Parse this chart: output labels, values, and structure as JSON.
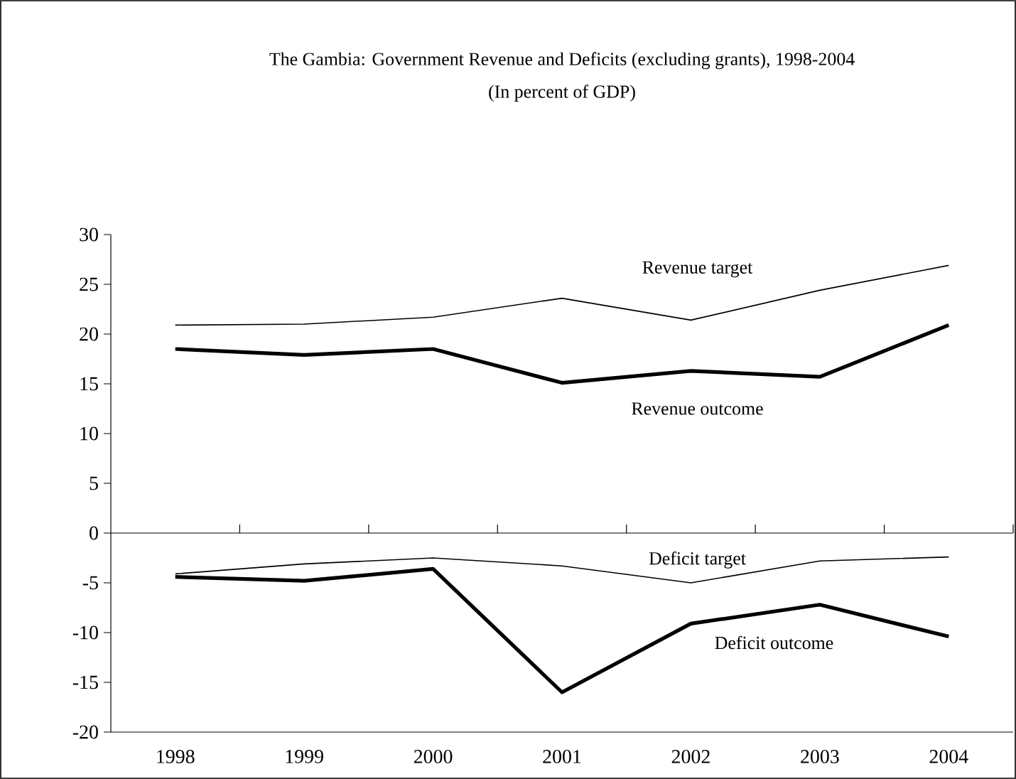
{
  "chart_data": {
    "type": "line",
    "title": "The Gambia: Government Revenue and Deficits (excluding grants), 1998-2004",
    "subtitle": "(In percent of GDP)",
    "categories": [
      "1998",
      "1999",
      "2000",
      "2001",
      "2002",
      "2003",
      "2004"
    ],
    "series": [
      {
        "color": "#000000",
        "values": [
          20.9,
          21.0,
          21.7,
          23.6,
          21.4,
          24.4,
          26.9
        ]
      },
      {
        "color": "#000000",
        "values": [
          18.5,
          17.9,
          18.5,
          15.1,
          16.3,
          15.7,
          20.9
        ]
      },
      {
        "color": "#000000",
        "values": [
          -4.1,
          -3.1,
          -2.5,
          -3.3,
          -5.0,
          -2.8,
          -2.4
        ]
      },
      {
        "color": "#000000",
        "values": [
          -4.4,
          -4.8,
          -3.6,
          -16.0,
          -9.1,
          -7.2,
          -10.4
        ]
      }
    ],
    "annotations": [
      "Revenue target",
      "Revenue outcome",
      "Deficit target",
      "Deficit outcome"
    ],
    "ylim": [
      -20,
      30
    ],
    "yticks": [
      -20,
      -15,
      -10,
      -5,
      0,
      5,
      10,
      15,
      20,
      25,
      30
    ],
    "ref_lines": [
      {
        "axis": "y",
        "value": 0
      }
    ],
    "marker": "none",
    "line_style": "solid"
  }
}
